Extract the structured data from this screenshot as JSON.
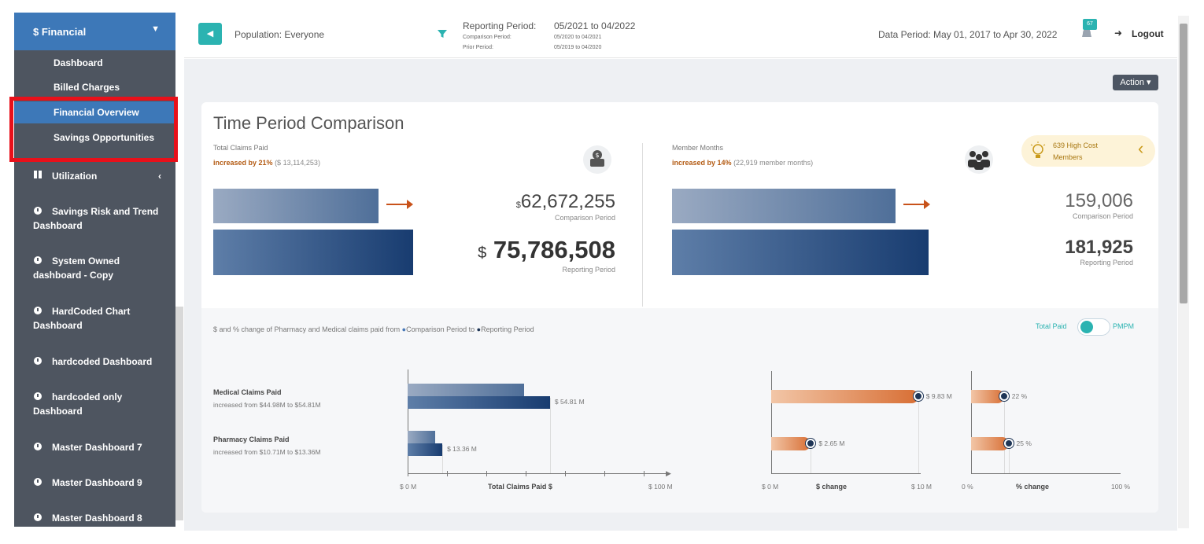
{
  "sidebar": {
    "section": {
      "label": "$ Financial"
    },
    "subitems": [
      {
        "label": "Dashboard"
      },
      {
        "label": "Billed Charges"
      },
      {
        "label": "Financial Overview"
      },
      {
        "label": "Savings Opportunities"
      }
    ],
    "groups": [
      {
        "label": "Utilization"
      },
      {
        "label": "Savings Risk and Trend Dashboard"
      },
      {
        "label": "System Owned dashboard - Copy"
      },
      {
        "label": "HardCoded Chart Dashboard"
      },
      {
        "label": "hardcoded Dashboard"
      },
      {
        "label": "hardcoded only Dashboard"
      },
      {
        "label": "Master Dashboard 7"
      },
      {
        "label": "Master Dashboard 9"
      },
      {
        "label": "Master Dashboard 8"
      }
    ]
  },
  "topbar": {
    "population": "Population: Everyone",
    "reporting_label": "Reporting Period:",
    "reporting_value": "05/2021 to 04/2022",
    "comparison_label": "Comparison Period:",
    "comparison_value": "05/2020 to 04/2021",
    "prior_label": "Prior Period:",
    "prior_value": "05/2019 to 04/2020",
    "data_period": "Data Period: May 01, 2017 to Apr 30, 2022",
    "notification_count": "67",
    "logout": "Logout"
  },
  "action_button": "Action ▾",
  "card": {
    "title": "Time Period Comparison",
    "claims": {
      "label": "Total Claims Paid",
      "increase_bold": "increased by 21%",
      "increase_detail": "($ 13,114,253)",
      "comparison_currency": "$",
      "comparison_value": "62,672,255",
      "comparison_label": "Comparison Period",
      "reporting_currency": "$",
      "reporting_value": "75,786,508",
      "reporting_label": "Reporting Period"
    },
    "members": {
      "label": "Member Months",
      "increase_bold": "increased by 14%",
      "increase_detail": "(22,919 member months)",
      "comparison_value": "159,006",
      "comparison_label": "Comparison Period",
      "reporting_value": "181,925",
      "reporting_label": "Reporting Period"
    },
    "high_cost": "639 High Cost Members"
  },
  "lower": {
    "description_prefix": "$ and % change of Pharmacy and Medical claims paid from",
    "legend_comparison": "Comparison Period to",
    "legend_reporting": "Reporting Period",
    "toggle_left": "Total Paid",
    "toggle_right": "PMPM"
  },
  "chart_data": [
    {
      "type": "bar",
      "categories": [
        "Medical Claims Paid",
        "Pharmacy Claims Paid"
      ],
      "category_notes": [
        "increased from $44.98M to $54.81M",
        "increased from $10.71M to $13.36M"
      ],
      "series": [
        {
          "name": "Comparison Period",
          "values": [
            44.98,
            10.71
          ]
        },
        {
          "name": "Reporting Period",
          "values": [
            54.81,
            13.36
          ]
        }
      ],
      "data_labels": [
        "$ 54.81 M",
        "$ 13.36 M"
      ],
      "xlabel": "Total Claims Paid $",
      "xlim": [
        0,
        100
      ],
      "tick_labels": [
        "$ 0 M",
        "$ 100 M"
      ]
    },
    {
      "type": "bar",
      "categories": [
        "Medical Claims Paid",
        "Pharmacy Claims Paid"
      ],
      "values": [
        9.83,
        2.65
      ],
      "data_labels": [
        "$ 9.83 M",
        "$ 2.65 M"
      ],
      "xlabel": "$ change",
      "xlim": [
        0,
        10
      ],
      "tick_labels": [
        "$ 0 M",
        "$ 10 M"
      ]
    },
    {
      "type": "bar",
      "categories": [
        "Medical Claims Paid",
        "Pharmacy Claims Paid"
      ],
      "values": [
        22,
        25
      ],
      "data_labels": [
        "22 %",
        "25 %"
      ],
      "xlabel": "% change",
      "xlim": [
        0,
        100
      ],
      "tick_labels": [
        "0 %",
        "100 %"
      ]
    }
  ],
  "colors": {
    "sidebar_bg": "#4e5560",
    "sidebar_active": "#3d78b8",
    "teal": "#2bb3b1",
    "navy": "#183c70",
    "orange": "#d86f35",
    "highlight": "#e8101a"
  }
}
